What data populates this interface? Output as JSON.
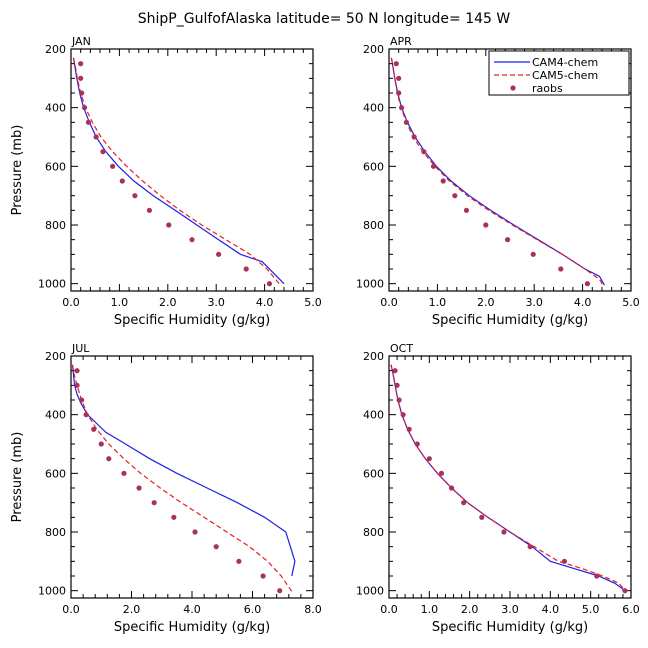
{
  "title": "ShipP_GulfofAlaska  latitude= 50 N longitude= 145 W",
  "legend": {
    "entries": [
      {
        "name": "CAM4-chem",
        "color": "#1f1fe6",
        "style": "solid"
      },
      {
        "name": "CAM5-chem",
        "color": "#e61f1f",
        "style": "dashed"
      },
      {
        "name": "raobs",
        "color": "#a8325a",
        "style": "dot"
      }
    ]
  },
  "chart_data": [
    {
      "type": "line",
      "panel": "JAN",
      "xlabel": "Specific Humidity (g/kg)",
      "ylabel": "Pressure (mb)",
      "xlim": [
        0,
        5
      ],
      "ylim": [
        200,
        1025
      ],
      "xticks": [
        0,
        1,
        2,
        3,
        4,
        5
      ],
      "xtick_labels": [
        "0.0",
        "1.0",
        "2.0",
        "3.0",
        "4.0",
        "5.0"
      ],
      "yticks": [
        200,
        400,
        600,
        800,
        1000
      ],
      "series": [
        {
          "name": "CAM4-chem",
          "x": [
            0.05,
            0.08,
            0.12,
            0.18,
            0.26,
            0.38,
            0.52,
            0.72,
            0.98,
            1.3,
            1.7,
            2.15,
            2.6,
            3.05,
            3.5,
            3.95,
            4.25,
            4.4
          ],
          "y": [
            230,
            260,
            300,
            350,
            400,
            450,
            500,
            550,
            600,
            650,
            700,
            750,
            800,
            850,
            900,
            925,
            975,
            1000
          ]
        },
        {
          "name": "CAM5-chem",
          "x": [
            0.05,
            0.09,
            0.13,
            0.2,
            0.3,
            0.44,
            0.62,
            0.86,
            1.15,
            1.48,
            1.85,
            2.25,
            2.7,
            3.2,
            3.7,
            4.05,
            4.3
          ],
          "y": [
            230,
            260,
            300,
            350,
            400,
            450,
            500,
            550,
            600,
            650,
            700,
            750,
            800,
            850,
            900,
            950,
            1000
          ]
        },
        {
          "name": "raobs",
          "x": [
            0.2,
            0.2,
            0.22,
            0.28,
            0.36,
            0.52,
            0.66,
            0.86,
            1.06,
            1.32,
            1.62,
            2.02,
            2.5,
            3.05,
            3.62,
            4.1
          ],
          "y": [
            250,
            300,
            350,
            400,
            450,
            500,
            550,
            600,
            650,
            700,
            750,
            800,
            850,
            900,
            950,
            1000
          ]
        }
      ]
    },
    {
      "type": "line",
      "panel": "APR",
      "xlabel": "Specific Humidity (g/kg)",
      "ylabel": "",
      "xlim": [
        0,
        5
      ],
      "ylim": [
        200,
        1025
      ],
      "xticks": [
        0,
        1,
        2,
        3,
        4,
        5
      ],
      "xtick_labels": [
        "0.0",
        "1.0",
        "2.0",
        "3.0",
        "4.0",
        "5.0"
      ],
      "yticks": [
        200,
        400,
        600,
        800,
        1000
      ],
      "series": [
        {
          "name": "CAM4-chem",
          "x": [
            0.05,
            0.08,
            0.12,
            0.18,
            0.26,
            0.38,
            0.54,
            0.74,
            0.98,
            1.28,
            1.66,
            2.1,
            2.58,
            3.08,
            3.58,
            4.05,
            4.35,
            4.45
          ],
          "y": [
            230,
            260,
            300,
            350,
            400,
            450,
            500,
            550,
            600,
            650,
            700,
            750,
            800,
            850,
            900,
            950,
            975,
            1005
          ]
        },
        {
          "name": "CAM5-chem",
          "x": [
            0.05,
            0.08,
            0.12,
            0.17,
            0.25,
            0.36,
            0.5,
            0.7,
            0.95,
            1.25,
            1.62,
            2.06,
            2.55,
            3.06,
            3.58,
            4.05,
            4.35,
            4.42
          ],
          "y": [
            230,
            260,
            300,
            350,
            400,
            450,
            500,
            550,
            600,
            650,
            700,
            750,
            800,
            850,
            900,
            950,
            985,
            1005
          ]
        },
        {
          "name": "raobs",
          "x": [
            0.15,
            0.2,
            0.2,
            0.26,
            0.36,
            0.52,
            0.72,
            0.92,
            1.12,
            1.36,
            1.6,
            2.0,
            2.45,
            2.98,
            3.55,
            4.1
          ],
          "y": [
            250,
            300,
            350,
            400,
            450,
            500,
            550,
            600,
            650,
            700,
            750,
            800,
            850,
            900,
            950,
            1000
          ]
        }
      ]
    },
    {
      "type": "line",
      "panel": "JUL",
      "xlabel": "Specific Humidity (g/kg)",
      "ylabel": "Pressure (mb)",
      "xlim": [
        0,
        8
      ],
      "ylim": [
        200,
        1025
      ],
      "xticks": [
        0,
        2,
        4,
        6,
        8
      ],
      "xtick_labels": [
        "0.0",
        "2.0",
        "4.0",
        "6.0",
        "8.0"
      ],
      "yticks": [
        200,
        400,
        600,
        800,
        1000
      ],
      "series": [
        {
          "name": "CAM4-chem",
          "x": [
            0.05,
            0.08,
            0.12,
            0.2,
            0.32,
            0.55,
            0.85,
            1.15,
            1.8,
            2.6,
            3.5,
            4.5,
            5.5,
            6.4,
            7.1,
            7.4,
            7.3
          ],
          "y": [
            230,
            260,
            300,
            330,
            360,
            400,
            430,
            460,
            500,
            550,
            600,
            650,
            700,
            750,
            800,
            900,
            950
          ]
        },
        {
          "name": "CAM5-chem",
          "x": [
            0.05,
            0.1,
            0.2,
            0.35,
            0.55,
            0.85,
            1.25,
            1.75,
            2.3,
            2.95,
            3.65,
            4.4,
            5.15,
            5.9,
            6.5,
            6.95,
            7.35
          ],
          "y": [
            230,
            260,
            300,
            350,
            400,
            450,
            500,
            550,
            600,
            650,
            700,
            750,
            800,
            850,
            900,
            950,
            1010
          ]
        },
        {
          "name": "raobs",
          "x": [
            0.2,
            0.2,
            0.35,
            0.5,
            0.75,
            1.0,
            1.25,
            1.75,
            2.25,
            2.75,
            3.4,
            4.1,
            4.8,
            5.55,
            6.35,
            6.9
          ],
          "y": [
            250,
            300,
            350,
            400,
            450,
            500,
            550,
            600,
            650,
            700,
            750,
            800,
            850,
            900,
            950,
            1000
          ]
        }
      ]
    },
    {
      "type": "line",
      "panel": "OCT",
      "xlabel": "Specific Humidity (g/kg)",
      "ylabel": "",
      "xlim": [
        0,
        6
      ],
      "ylim": [
        200,
        1025
      ],
      "xticks": [
        0,
        1,
        2,
        3,
        4,
        5,
        6
      ],
      "xtick_labels": [
        "0.0",
        "1.0",
        "2.0",
        "3.0",
        "4.0",
        "5.0",
        "6.0"
      ],
      "yticks": [
        200,
        400,
        600,
        800,
        1000
      ],
      "series": [
        {
          "name": "CAM4-chem",
          "x": [
            0.05,
            0.1,
            0.15,
            0.22,
            0.32,
            0.46,
            0.65,
            0.9,
            1.2,
            1.55,
            1.95,
            2.45,
            3.0,
            3.55,
            4.0,
            4.6,
            5.2,
            5.6,
            5.85
          ],
          "y": [
            230,
            260,
            300,
            350,
            400,
            450,
            500,
            550,
            600,
            650,
            700,
            750,
            800,
            850,
            900,
            925,
            950,
            975,
            1000
          ]
        },
        {
          "name": "CAM5-chem",
          "x": [
            0.05,
            0.1,
            0.15,
            0.22,
            0.32,
            0.46,
            0.65,
            0.9,
            1.2,
            1.55,
            1.95,
            2.45,
            3.0,
            3.6,
            4.2,
            4.8,
            5.3,
            5.7,
            5.85
          ],
          "y": [
            230,
            260,
            300,
            350,
            400,
            450,
            500,
            550,
            600,
            650,
            700,
            750,
            800,
            850,
            900,
            925,
            950,
            975,
            1000
          ]
        },
        {
          "name": "raobs",
          "x": [
            0.15,
            0.2,
            0.25,
            0.35,
            0.5,
            0.7,
            1.0,
            1.3,
            1.55,
            1.85,
            2.3,
            2.85,
            3.5,
            4.35,
            5.15,
            5.85
          ],
          "y": [
            250,
            300,
            350,
            400,
            450,
            500,
            550,
            600,
            650,
            700,
            750,
            800,
            850,
            900,
            950,
            1000
          ]
        }
      ]
    }
  ]
}
